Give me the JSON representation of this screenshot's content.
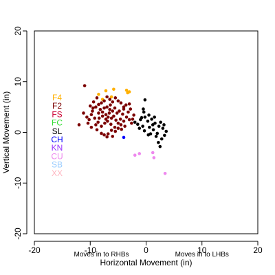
{
  "chart_data": {
    "type": "scatter",
    "xlabel": "Horizontal Movement (in)",
    "ylabel": "Vertical Movement (in)",
    "xlim": [
      -20,
      20
    ],
    "ylim": [
      -20,
      20
    ],
    "x_ticks": [
      -20,
      -10,
      0,
      10,
      20
    ],
    "y_ticks": [
      -20,
      -10,
      0,
      10,
      20
    ],
    "grid": false,
    "legend_position": "left",
    "annotations": [
      {
        "text": "Moves in to RHBs",
        "x": -8,
        "y": -23.5
      },
      {
        "text": "Moves in to LHBs",
        "x": 10,
        "y": -23.5
      }
    ],
    "legend": [
      {
        "label": "F4",
        "color": "#FFB000"
      },
      {
        "label": "F2",
        "color": "#7B0000"
      },
      {
        "label": "FS",
        "color": "#CC0033"
      },
      {
        "label": "FC",
        "color": "#33DD33"
      },
      {
        "label": "SL",
        "color": "#000000"
      },
      {
        "label": "CH",
        "color": "#0000FF"
      },
      {
        "label": "KN",
        "color": "#9933FF"
      },
      {
        "label": "CU",
        "color": "#EE88EE"
      },
      {
        "label": "SB",
        "color": "#99CCFF"
      },
      {
        "label": "XX",
        "color": "#FFB6C1"
      }
    ],
    "series": [
      {
        "name": "F4",
        "color": "#FFB000",
        "points": [
          [
            -8.5,
            7.5
          ],
          [
            -7.2,
            8.2
          ],
          [
            -5.8,
            8.5
          ],
          [
            -3.5,
            8.3
          ],
          [
            -3.0,
            8.0
          ],
          [
            -3.3,
            7.8
          ],
          [
            -6.2,
            7.0
          ],
          [
            -7.8,
            6.5
          ]
        ]
      },
      {
        "name": "F2",
        "color": "#7B0000",
        "points": [
          [
            -11.0,
            9.2
          ],
          [
            -10.0,
            5.2
          ],
          [
            -9.5,
            4.8
          ],
          [
            -9.8,
            3.5
          ],
          [
            -10.2,
            2.5
          ],
          [
            -9.0,
            1.5
          ],
          [
            -8.8,
            0.5
          ],
          [
            -8.0,
            -0.2
          ],
          [
            -7.5,
            -0.5
          ],
          [
            -6.8,
            -0.3
          ],
          [
            -6.0,
            -0.8
          ],
          [
            -5.5,
            0.2
          ],
          [
            -5.0,
            0.8
          ],
          [
            -4.5,
            1.5
          ],
          [
            -4.0,
            2.2
          ],
          [
            -3.5,
            3.0
          ],
          [
            -3.0,
            2.5
          ],
          [
            -3.2,
            4.0
          ],
          [
            -4.0,
            5.0
          ],
          [
            -4.5,
            5.8
          ],
          [
            -5.0,
            6.2
          ],
          [
            -5.5,
            6.8
          ],
          [
            -6.0,
            6.0
          ],
          [
            -6.5,
            6.5
          ],
          [
            -7.0,
            7.0
          ],
          [
            -7.5,
            6.2
          ],
          [
            -8.0,
            5.8
          ],
          [
            -8.5,
            5.5
          ],
          [
            -9.0,
            5.0
          ],
          [
            -8.2,
            4.5
          ],
          [
            -7.8,
            4.0
          ],
          [
            -7.2,
            3.5
          ],
          [
            -6.8,
            3.0
          ],
          [
            -6.2,
            2.8
          ],
          [
            -5.8,
            3.2
          ],
          [
            -5.2,
            3.8
          ],
          [
            -4.8,
            4.2
          ],
          [
            -4.2,
            3.6
          ],
          [
            -6.5,
            4.5
          ],
          [
            -7.0,
            5.0
          ],
          [
            -7.5,
            4.8
          ],
          [
            -8.5,
            3.8
          ],
          [
            -9.2,
            2.8
          ],
          [
            -8.6,
            2.0
          ],
          [
            -8.0,
            1.2
          ],
          [
            -7.4,
            1.8
          ],
          [
            -6.9,
            2.2
          ],
          [
            -6.3,
            1.6
          ],
          [
            -5.6,
            1.0
          ],
          [
            -5.0,
            1.8
          ],
          [
            -4.6,
            2.6
          ],
          [
            -3.8,
            1.2
          ],
          [
            -2.6,
            1.8
          ],
          [
            -2.2,
            3.4
          ],
          [
            -2.8,
            4.6
          ],
          [
            -3.6,
            5.4
          ],
          [
            -9.6,
            4.2
          ],
          [
            -10.6,
            3.0
          ],
          [
            -12.0,
            1.5
          ],
          [
            -11.2,
            3.8
          ],
          [
            -9.4,
            6.0
          ],
          [
            -8.8,
            6.8
          ],
          [
            -6.4,
            5.4
          ],
          [
            -5.6,
            4.8
          ],
          [
            -7.2,
            2.6
          ],
          [
            -6.6,
            3.8
          ],
          [
            -6.0,
            4.2
          ],
          [
            -5.4,
            2.4
          ],
          [
            -8.4,
            2.8
          ],
          [
            -7.8,
            3.2
          ],
          [
            -4.4,
            0.6
          ],
          [
            -9.8,
            1.0
          ],
          [
            -7.0,
            -0.9
          ],
          [
            -6.2,
            0.4
          ],
          [
            -4.0,
            4.6
          ],
          [
            -3.0,
            5.6
          ],
          [
            -2.4,
            2.6
          ],
          [
            -10.4,
            1.8
          ]
        ]
      },
      {
        "name": "SL",
        "color": "#000000",
        "points": [
          [
            -2.0,
            2.0
          ],
          [
            -1.5,
            1.6
          ],
          [
            -1.0,
            2.5
          ],
          [
            -0.6,
            1.2
          ],
          [
            -0.2,
            3.0
          ],
          [
            0.3,
            2.2
          ],
          [
            0.6,
            1.0
          ],
          [
            1.0,
            2.6
          ],
          [
            1.3,
            0.5
          ],
          [
            1.6,
            1.8
          ],
          [
            2.0,
            -0.2
          ],
          [
            2.3,
            1.2
          ],
          [
            2.6,
            2.0
          ],
          [
            3.0,
            0.8
          ],
          [
            3.3,
            -0.6
          ],
          [
            3.6,
            0.2
          ],
          [
            2.8,
            -1.3
          ],
          [
            2.2,
            -2.0
          ],
          [
            2.5,
            -2.8
          ],
          [
            1.8,
            -0.8
          ],
          [
            0.8,
            -0.3
          ],
          [
            -0.3,
            0.3
          ],
          [
            -0.8,
            2.9
          ],
          [
            -0.4,
            4.0
          ],
          [
            -0.2,
            6.4
          ],
          [
            0.5,
            3.4
          ],
          [
            1.5,
            3.0
          ],
          [
            3.2,
            1.5
          ],
          [
            1.2,
            1.5
          ],
          [
            -1.2,
            0.8
          ],
          [
            -0.5,
            4.6
          ],
          [
            0.4,
            -0.5
          ]
        ]
      },
      {
        "name": "CH",
        "color": "#0000FF",
        "points": [
          [
            -4.0,
            -1.0
          ]
        ]
      },
      {
        "name": "CU",
        "color": "#EE88EE",
        "points": [
          [
            -2.0,
            -4.5
          ],
          [
            -1.2,
            -4.2
          ],
          [
            1.2,
            -4.0
          ],
          [
            1.4,
            -5.0
          ],
          [
            3.4,
            -8.1
          ]
        ]
      }
    ]
  }
}
